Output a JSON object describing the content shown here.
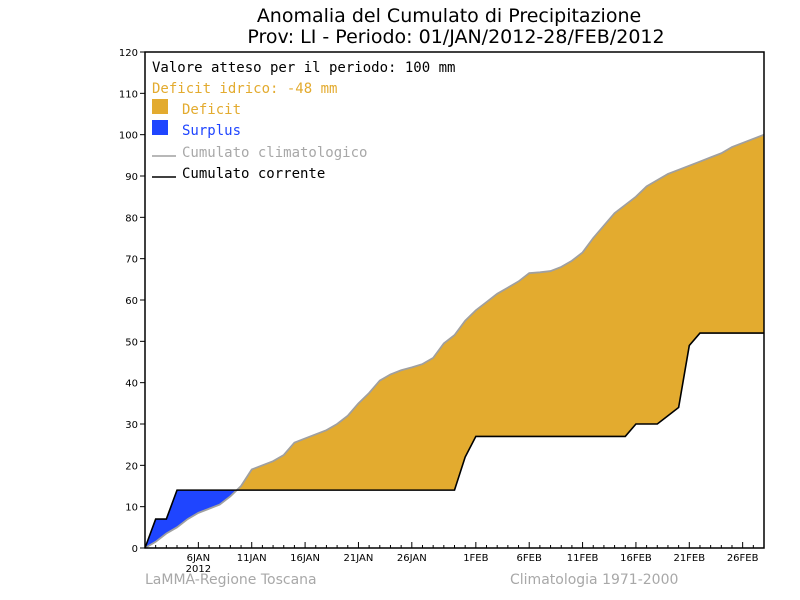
{
  "chart_data": {
    "type": "area",
    "title": "Anomalia del Cumulato di Precipitazione",
    "subtitle": "Prov: LI - Periodo: 01/JAN/2012-28/FEB/2012",
    "ylim": [
      0,
      120
    ],
    "yticks": [
      0,
      10,
      20,
      30,
      40,
      50,
      60,
      70,
      80,
      90,
      100,
      110,
      120
    ],
    "xlim": [
      0,
      58
    ],
    "xticks": [
      {
        "day": 5,
        "label": "6JAN",
        "sublabel": "2012"
      },
      {
        "day": 10,
        "label": "11JAN"
      },
      {
        "day": 15,
        "label": "16JAN"
      },
      {
        "day": 20,
        "label": "21JAN"
      },
      {
        "day": 25,
        "label": "26JAN"
      },
      {
        "day": 31,
        "label": "1FEB"
      },
      {
        "day": 36,
        "label": "6FEB"
      },
      {
        "day": 41,
        "label": "11FEB"
      },
      {
        "day": 46,
        "label": "16FEB"
      },
      {
        "day": 51,
        "label": "21FEB"
      },
      {
        "day": 56,
        "label": "26FEB"
      }
    ],
    "legend": {
      "expected_text": "Valore atteso per il periodo: 100 mm",
      "deficit_text": "Deficit idrico: -48 mm",
      "deficit_label": "Deficit",
      "surplus_label": "Surplus",
      "clim_label": "Cumulato climatologico",
      "current_label": "Cumulato corrente",
      "placement": "top-left"
    },
    "colors": {
      "deficit": "#e3ab2f",
      "surplus": "#1f45ff",
      "climatological": "#a0a0a0",
      "current": "#000000",
      "deficit_text": "#e3ab2f",
      "surplus_text": "#1f45ff",
      "clim_text": "#a8a8a8"
    },
    "series": [
      {
        "name": "Cumulato climatologico",
        "x": [
          0,
          1,
          2,
          3,
          4,
          5,
          6,
          7,
          8,
          9,
          10,
          11,
          12,
          13,
          14,
          15,
          16,
          17,
          18,
          19,
          20,
          21,
          22,
          23,
          24,
          25,
          26,
          27,
          28,
          29,
          30,
          31,
          32,
          33,
          34,
          35,
          36,
          37,
          38,
          39,
          40,
          41,
          42,
          43,
          44,
          45,
          46,
          47,
          48,
          49,
          50,
          51,
          52,
          53,
          54,
          55,
          56,
          57,
          58
        ],
        "values": [
          0,
          1.5,
          3.5,
          5,
          7,
          8.5,
          9.5,
          10.5,
          12.5,
          15,
          19,
          20,
          21,
          22.5,
          25.5,
          26.5,
          27.5,
          28.5,
          30,
          32,
          35,
          37.5,
          40.5,
          42,
          43,
          43.7,
          44.5,
          46,
          49.5,
          51.5,
          55,
          57.5,
          59.5,
          61.5,
          63,
          64.5,
          66.5,
          66.7,
          67,
          68,
          69.5,
          71.5,
          75,
          78,
          81,
          83,
          85,
          87.5,
          89,
          90.5,
          91.5,
          92.5,
          93.5,
          94.5,
          95.5,
          97,
          98,
          99,
          100
        ]
      },
      {
        "name": "Cumulato corrente",
        "x": [
          0,
          1,
          2,
          3,
          4,
          29,
          30,
          31,
          32,
          36,
          38,
          39,
          40,
          41,
          42,
          43,
          44,
          45,
          46,
          47,
          48,
          49,
          50,
          51,
          52,
          53,
          54,
          55,
          56,
          57,
          58
        ],
        "values": [
          0,
          7,
          7,
          14,
          14,
          14,
          22,
          27,
          27,
          27,
          27,
          27,
          27,
          27,
          27,
          27,
          27,
          27,
          30,
          30,
          30,
          32,
          34,
          49,
          52,
          52,
          52,
          52,
          52,
          52,
          52
        ]
      }
    ],
    "deficit_mm": -48,
    "expected_mm": 100
  },
  "footer": {
    "left": "LaMMA-Regione Toscana",
    "right": "Climatologia 1971-2000"
  }
}
